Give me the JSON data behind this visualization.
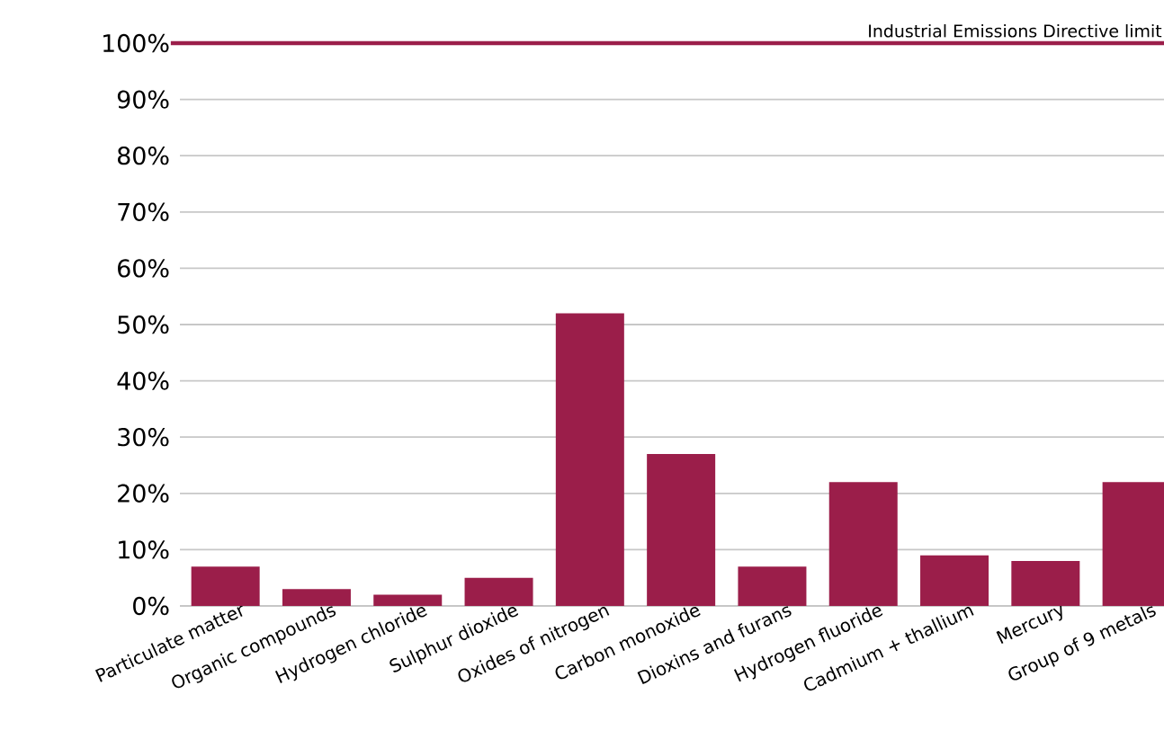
{
  "chart_data": {
    "type": "bar",
    "categories": [
      "Particulate matter",
      "Organic compounds",
      "Hydrogen  chloride",
      "Sulphur dioxide",
      "Oxides of nitrogen",
      "Carbon monoxide",
      "Dioxins and furans",
      "Hydrogen fluoride",
      "Cadmium + thallium",
      "Mercury",
      "Group of 9 metals"
    ],
    "values": [
      7,
      3,
      2,
      5,
      52,
      27,
      7,
      22,
      9,
      8,
      22
    ],
    "color": "#9b1e4a",
    "ylim": [
      0,
      100
    ],
    "yticks": [
      {
        "value": 0,
        "label": "0%"
      },
      {
        "value": 10,
        "label": "10%"
      },
      {
        "value": 20,
        "label": "20%"
      },
      {
        "value": 30,
        "label": "30%"
      },
      {
        "value": 40,
        "label": "40%"
      },
      {
        "value": 50,
        "label": "50%"
      },
      {
        "value": 60,
        "label": "60%"
      },
      {
        "value": 70,
        "label": "70%"
      },
      {
        "value": 80,
        "label": "80%"
      },
      {
        "value": 90,
        "label": "90%"
      },
      {
        "value": 100,
        "label": "100%"
      }
    ],
    "grid": "y",
    "ref_lines": [
      {
        "axis": "y",
        "value": 100,
        "label": "Industrial Emissions Directive limit",
        "color": "#9b1e4a"
      }
    ]
  }
}
